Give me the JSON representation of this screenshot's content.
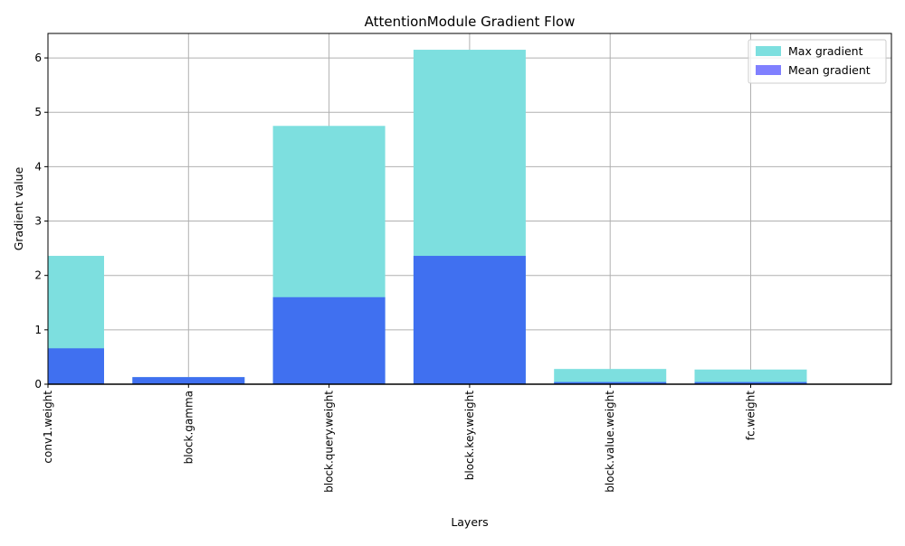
{
  "chart_data": {
    "type": "bar",
    "title": "AttentionModule Gradient Flow",
    "xlabel": "Layers",
    "ylabel": "Gradient value",
    "categories": [
      "conv1.weight",
      "block.gamma",
      "block.query.weight",
      "block.key.weight",
      "block.value.weight",
      "fc.weight"
    ],
    "series": [
      {
        "name": "Max gradient",
        "values": [
          2.36,
          0.13,
          4.75,
          6.15,
          0.28,
          0.27
        ],
        "color": "#7ddfdf"
      },
      {
        "name": "Mean gradient",
        "values": [
          0.66,
          0.13,
          1.6,
          2.36,
          0.04,
          0.04
        ],
        "color": "#8080ff",
        "overlap_color": "#4070f0"
      }
    ],
    "ylim": [
      0,
      6.45
    ],
    "yticks": [
      0,
      1,
      2,
      3,
      4,
      5,
      6
    ],
    "grid": true,
    "legend_position": "top-right",
    "tick_label_rotation": "vertical"
  }
}
